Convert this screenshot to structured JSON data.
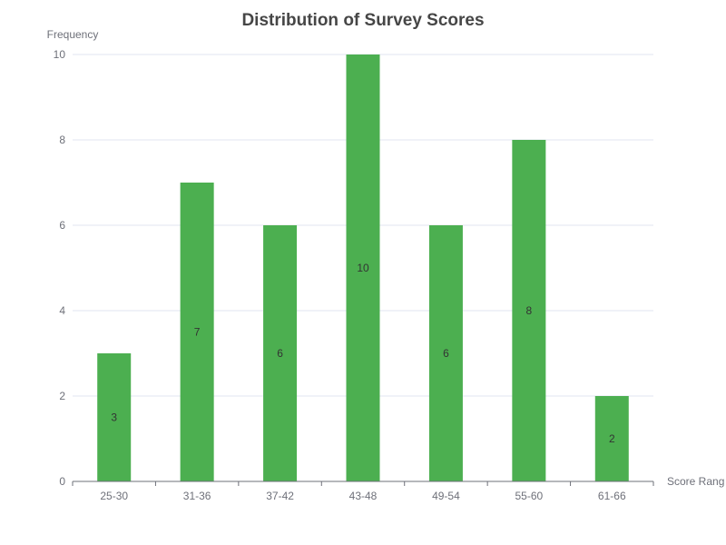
{
  "chart_data": {
    "type": "bar",
    "title": "Distribution of Survey Scores",
    "xlabel": "Score Rang",
    "ylabel": "Frequency",
    "categories": [
      "25-30",
      "31-36",
      "37-42",
      "43-48",
      "49-54",
      "55-60",
      "61-66"
    ],
    "values": [
      3,
      7,
      6,
      10,
      6,
      8,
      2
    ],
    "ylim": [
      0,
      10
    ],
    "yticks": [
      0,
      2,
      4,
      6,
      8,
      10
    ],
    "grid": true,
    "data_labels": true,
    "bar_color": "#4caf50"
  }
}
